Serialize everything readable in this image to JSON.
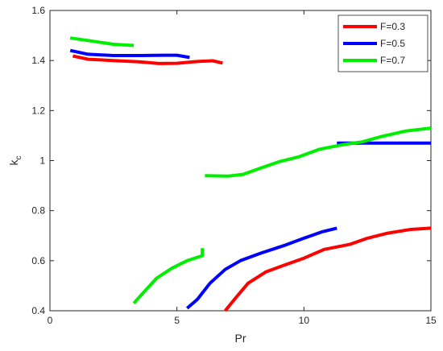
{
  "chart_data": {
    "type": "line",
    "title": "",
    "xlabel": "Pr",
    "ylabel_main": "k",
    "ylabel_sub": "c",
    "xlim": [
      0,
      15
    ],
    "ylim": [
      0.4,
      1.6
    ],
    "xticks": [
      0,
      5,
      10,
      15
    ],
    "yticks": [
      0.4,
      0.6,
      0.8,
      1.0,
      1.2,
      1.4,
      1.6
    ],
    "xtick_labels": [
      "0",
      "5",
      "10",
      "15"
    ],
    "ytick_labels": [
      "0.4",
      "0.6",
      "0.8",
      "1",
      "1.2",
      "1.4",
      "1.6"
    ],
    "grid": false,
    "legend_position": "top-right",
    "series": [
      {
        "name": "F=0.3",
        "color": "#ff0000",
        "segments": [
          [
            [
              0.9,
              1.418
            ],
            [
              1.5,
              1.405
            ],
            [
              2.5,
              1.4
            ],
            [
              3.5,
              1.395
            ],
            [
              4.3,
              1.388
            ],
            [
              5.0,
              1.389
            ],
            [
              5.8,
              1.396
            ],
            [
              6.4,
              1.399
            ],
            [
              6.8,
              1.39
            ]
          ],
          [
            [
              6.9,
              0.4
            ],
            [
              7.3,
              0.45
            ],
            [
              7.8,
              0.51
            ],
            [
              8.5,
              0.555
            ],
            [
              9.3,
              0.585
            ],
            [
              10.0,
              0.61
            ],
            [
              10.8,
              0.645
            ],
            [
              11.8,
              0.665
            ],
            [
              12.5,
              0.69
            ],
            [
              13.3,
              0.71
            ],
            [
              14.2,
              0.725
            ],
            [
              15.0,
              0.73
            ]
          ]
        ]
      },
      {
        "name": "F=0.5",
        "color": "#0000ff",
        "segments": [
          [
            [
              0.8,
              1.44
            ],
            [
              1.5,
              1.425
            ],
            [
              2.5,
              1.42
            ],
            [
              3.5,
              1.42
            ],
            [
              4.5,
              1.421
            ],
            [
              5.0,
              1.421
            ],
            [
              5.5,
              1.412
            ]
          ],
          [
            [
              5.4,
              0.41
            ],
            [
              5.8,
              0.445
            ],
            [
              6.3,
              0.51
            ],
            [
              6.9,
              0.565
            ],
            [
              7.5,
              0.6
            ],
            [
              8.3,
              0.63
            ],
            [
              9.2,
              0.66
            ],
            [
              10.0,
              0.69
            ],
            [
              10.7,
              0.715
            ],
            [
              11.3,
              0.73
            ]
          ],
          [
            [
              11.3,
              1.07
            ],
            [
              12.5,
              1.07
            ],
            [
              13.5,
              1.07
            ],
            [
              15.0,
              1.07
            ]
          ]
        ]
      },
      {
        "name": "F=0.7",
        "color": "#00ee00",
        "segments": [
          [
            [
              0.8,
              1.49
            ],
            [
              1.5,
              1.48
            ],
            [
              2.5,
              1.465
            ],
            [
              3.3,
              1.46
            ]
          ],
          [
            [
              3.3,
              0.43
            ],
            [
              3.7,
              0.475
            ],
            [
              4.2,
              0.53
            ],
            [
              4.8,
              0.57
            ],
            [
              5.4,
              0.6
            ],
            [
              6.0,
              0.62
            ],
            [
              6.0,
              0.625
            ],
            [
              6.0,
              0.65
            ]
          ],
          [
            [
              6.1,
              0.94
            ],
            [
              7.0,
              0.938
            ],
            [
              7.6,
              0.945
            ],
            [
              8.3,
              0.97
            ],
            [
              9.0,
              0.995
            ],
            [
              9.8,
              1.015
            ],
            [
              10.6,
              1.045
            ],
            [
              11.5,
              1.063
            ],
            [
              12.3,
              1.075
            ],
            [
              13.0,
              1.095
            ],
            [
              14.0,
              1.118
            ],
            [
              15.0,
              1.13
            ]
          ]
        ]
      }
    ]
  }
}
